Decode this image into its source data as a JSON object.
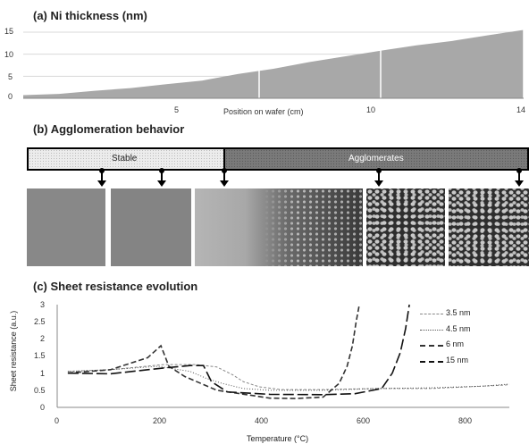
{
  "panel_a": {
    "title": "(a)   Ni thickness (nm)",
    "y_ticks": [
      "15",
      "10",
      "5",
      "0"
    ],
    "x_ticks": [
      "5",
      "10",
      "14"
    ],
    "xlabel": "Position on wafer (cm)"
  },
  "panel_b": {
    "title": "(b)   Agglomeration behavior",
    "stable_label": "Stable",
    "agglomerates_label": "Agglomerates"
  },
  "panel_c": {
    "title": "(c)   Sheet resistance evolution",
    "ylabel": "Sheet resistance (a.u.)",
    "xlabel": "Temperature (°C)"
  },
  "chart_data": [
    {
      "type": "area",
      "title": "(a) Ni thickness (nm)",
      "xlabel": "Position on wafer (cm)",
      "ylabel": "",
      "x": [
        0,
        1,
        2,
        3,
        4,
        5,
        6,
        7,
        8,
        9,
        10,
        11,
        12,
        13,
        14
      ],
      "values": [
        0.7,
        1.0,
        1.7,
        2.3,
        3.2,
        4.0,
        5.5,
        6.7,
        8.2,
        9.5,
        10.8,
        12.0,
        13.0,
        14.3,
        15.5
      ],
      "xlim": [
        0,
        14
      ],
      "ylim": [
        0,
        15
      ],
      "x_ticks": [
        5,
        10,
        14
      ],
      "y_ticks": [
        0,
        5,
        10,
        15
      ],
      "fill": "#a8a8a8"
    },
    {
      "type": "line",
      "title": "(c) Sheet resistance evolution",
      "xlabel": "Temperature (°C)",
      "ylabel": "Sheet resistance (a.u.)",
      "xlim": [
        0,
        850
      ],
      "ylim": [
        0,
        3
      ],
      "x_ticks": [
        0,
        200,
        400,
        600,
        800
      ],
      "y_ticks": [
        0,
        0.5,
        1,
        1.5,
        2,
        2.5,
        3
      ],
      "legend_position": "top-right",
      "series": [
        {
          "name": "3.5 nm",
          "dash": "3,2",
          "color": "#888888",
          "x": [
            20,
            100,
            200,
            260,
            300,
            330,
            350,
            380,
            420,
            500,
            600,
            700,
            800,
            850
          ],
          "y": [
            1.05,
            1.1,
            1.25,
            1.25,
            1.18,
            0.95,
            0.75,
            0.6,
            0.52,
            0.52,
            0.55,
            0.55,
            0.62,
            0.66
          ]
        },
        {
          "name": "4.5 nm",
          "dash": "1,2",
          "color": "#555555",
          "x": [
            20,
            100,
            190,
            250,
            280,
            310,
            350,
            400,
            500,
            600,
            700,
            800,
            850
          ],
          "y": [
            1.05,
            1.1,
            1.2,
            1.05,
            0.85,
            0.7,
            0.55,
            0.5,
            0.5,
            0.55,
            0.57,
            0.62,
            0.68
          ]
        },
        {
          "name": "6 nm",
          "dash": "6,3",
          "color": "#333333",
          "x": [
            20,
            100,
            170,
            195,
            210,
            240,
            300,
            400,
            450,
            500,
            530,
            545,
            555,
            562,
            568
          ],
          "y": [
            1.0,
            1.1,
            1.45,
            1.8,
            1.2,
            0.9,
            0.5,
            0.27,
            0.26,
            0.3,
            0.7,
            1.2,
            1.8,
            2.5,
            3.0
          ]
        },
        {
          "name": "15 nm",
          "dash": "12,4",
          "color": "#111111",
          "x": [
            20,
            100,
            200,
            250,
            275,
            290,
            320,
            400,
            500,
            560,
            610,
            630,
            645,
            655,
            662
          ],
          "y": [
            1.0,
            0.98,
            1.15,
            1.22,
            1.22,
            0.75,
            0.45,
            0.38,
            0.37,
            0.4,
            0.55,
            1.0,
            1.6,
            2.3,
            3.0
          ]
        }
      ]
    }
  ]
}
